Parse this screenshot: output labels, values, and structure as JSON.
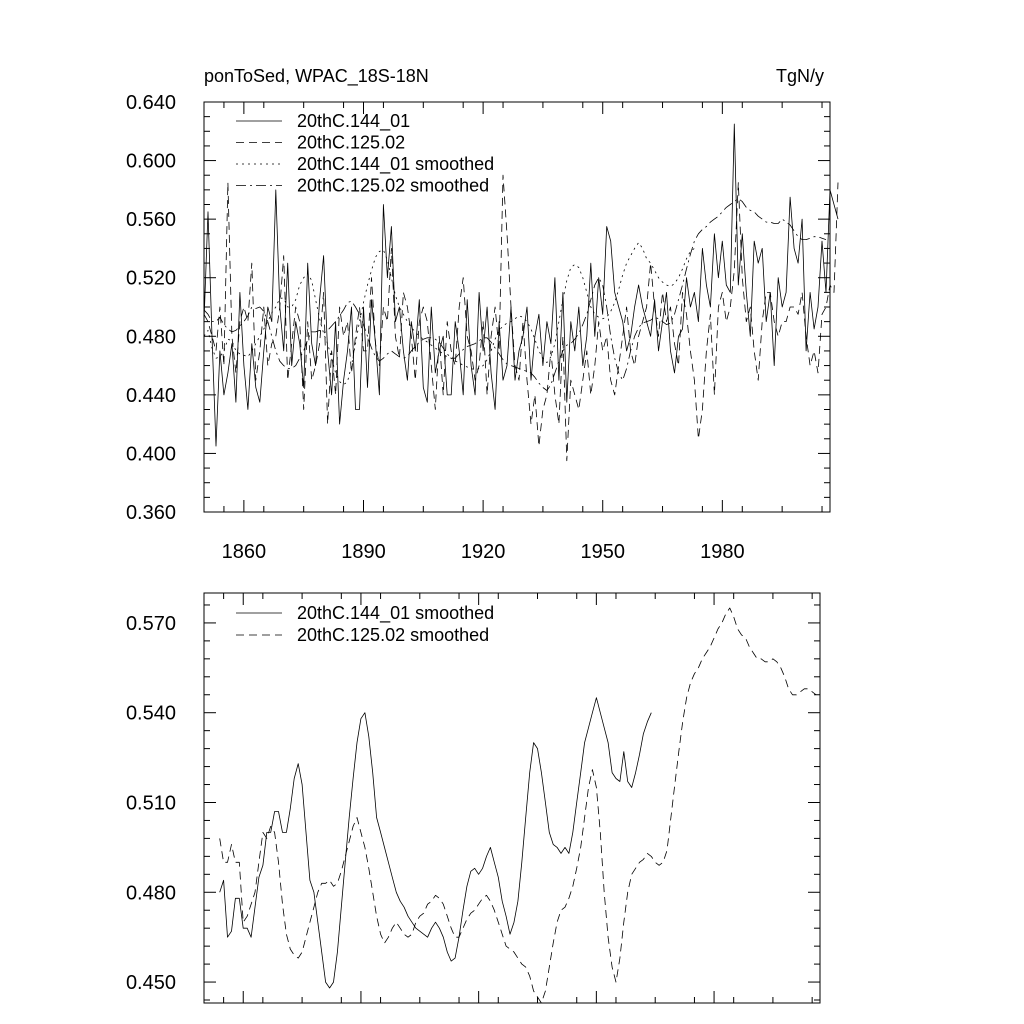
{
  "chart_data": [
    {
      "type": "line",
      "title": "ponToSed, WPAC_18S-18N",
      "units": "TgN/y",
      "xlabel": "",
      "ylabel": "",
      "xlim": [
        1850,
        2007
      ],
      "ylim": [
        0.36,
        0.64
      ],
      "xticks": [
        1860,
        1890,
        1920,
        1950,
        1980
      ],
      "xtick_labels": [
        "1860",
        "1890",
        "1920",
        "1950",
        "1980"
      ],
      "yticks": [
        0.36,
        0.4,
        0.44,
        0.48,
        0.52,
        0.56,
        0.6,
        0.64
      ],
      "ytick_labels": [
        "0.360",
        "0.400",
        "0.440",
        "0.480",
        "0.520",
        "0.560",
        "0.600",
        "0.640"
      ],
      "legend": "top-left",
      "grid": false,
      "series": [
        {
          "name": "20thC.144_01",
          "style": "solid",
          "x_start": 1850,
          "values": [
            0.49,
            0.565,
            0.48,
            0.405,
            0.47,
            0.44,
            0.455,
            0.475,
            0.435,
            0.51,
            0.46,
            0.43,
            0.475,
            0.445,
            0.435,
            0.47,
            0.5,
            0.49,
            0.58,
            0.5,
            0.47,
            0.53,
            0.46,
            0.49,
            0.475,
            0.445,
            0.53,
            0.475,
            0.46,
            0.505,
            0.535,
            0.47,
            0.44,
            0.49,
            0.42,
            0.45,
            0.47,
            0.5,
            0.43,
            0.43,
            0.5,
            0.445,
            0.505,
            0.475,
            0.44,
            0.57,
            0.52,
            0.555,
            0.49,
            0.5,
            0.47,
            0.45,
            0.49,
            0.47,
            0.505,
            0.445,
            0.435,
            0.5,
            0.455,
            0.47,
            0.48,
            0.44,
            0.44,
            0.49,
            0.47,
            0.44,
            0.505,
            0.46,
            0.44,
            0.51,
            0.47,
            0.5,
            0.455,
            0.43,
            0.49,
            0.45,
            0.46,
            0.5,
            0.45,
            0.47,
            0.48,
            0.5,
            0.45,
            0.48,
            0.495,
            0.46,
            0.49,
            0.475,
            0.52,
            0.45,
            0.51,
            0.435,
            0.49,
            0.47,
            0.5,
            0.46,
            0.48,
            0.53,
            0.48,
            0.52,
            0.495,
            0.555,
            0.545,
            0.51,
            0.5,
            0.49,
            0.47,
            0.48,
            0.5,
            0.515,
            0.5,
            0.49,
            0.48,
            0.505,
            0.47,
            0.49,
            0.51,
            0.47,
            0.455,
            0.48,
            0.485,
            0.52,
            0.5,
            0.51,
            0.49,
            0.54,
            0.515,
            0.5,
            0.55,
            0.52,
            0.545,
            0.515,
            0.51,
            0.625,
            0.515,
            0.55,
            0.51,
            0.48,
            0.545,
            0.53,
            0.54,
            0.49,
            0.51,
            0.46,
            0.52,
            0.5,
            0.51,
            0.575,
            0.54,
            0.53,
            0.56,
            0.47,
            0.51,
            0.485,
            0.5,
            0.545,
            0.51,
            0.58,
            0.57,
            0.56
          ]
        },
        {
          "name": "20thC.125.02",
          "style": "dashed",
          "x_start": 1850,
          "values": [
            0.495,
            0.49,
            0.48,
            0.47,
            0.5,
            0.46,
            0.585,
            0.48,
            0.455,
            0.49,
            0.5,
            0.49,
            0.53,
            0.45,
            0.47,
            0.5,
            0.46,
            0.475,
            0.48,
            0.5,
            0.535,
            0.45,
            0.475,
            0.5,
            0.49,
            0.43,
            0.49,
            0.45,
            0.46,
            0.475,
            0.51,
            0.42,
            0.47,
            0.44,
            0.5,
            0.48,
            0.49,
            0.455,
            0.48,
            0.5,
            0.47,
            0.47,
            0.52,
            0.475,
            0.46,
            0.5,
            0.49,
            0.54,
            0.48,
            0.465,
            0.51,
            0.5,
            0.48,
            0.45,
            0.49,
            0.5,
            0.49,
            0.46,
            0.43,
            0.48,
            0.44,
            0.49,
            0.47,
            0.46,
            0.5,
            0.52,
            0.48,
            0.47,
            0.45,
            0.46,
            0.49,
            0.44,
            0.48,
            0.5,
            0.47,
            0.59,
            0.55,
            0.5,
            0.46,
            0.45,
            0.49,
            0.45,
            0.42,
            0.44,
            0.405,
            0.43,
            0.44,
            0.47,
            0.44,
            0.42,
            0.48,
            0.395,
            0.45,
            0.44,
            0.43,
            0.45,
            0.47,
            0.44,
            0.46,
            0.49,
            0.47,
            0.48,
            0.45,
            0.44,
            0.46,
            0.48,
            0.5,
            0.47,
            0.46,
            0.48,
            0.49,
            0.5,
            0.53,
            0.5,
            0.48,
            0.51,
            0.49,
            0.5,
            0.475,
            0.46,
            0.51,
            0.495,
            0.47,
            0.45,
            0.41,
            0.43,
            0.47,
            0.495,
            0.44,
            0.5,
            0.51,
            0.49,
            0.5,
            0.525,
            0.585,
            0.52,
            0.49,
            0.5,
            0.47,
            0.45,
            0.49,
            0.51,
            0.51,
            0.49,
            0.48,
            0.49,
            0.49,
            0.5,
            0.5,
            0.495,
            0.51,
            0.48,
            0.46,
            0.47,
            0.455,
            0.495,
            0.5,
            0.515,
            0.51,
            0.585
          ]
        },
        {
          "name": "20thC.144_01 smoothed",
          "style": "dotted",
          "x_start": 1850,
          "values": [
            0.48,
            0.484,
            0.472,
            0.465,
            0.466,
            0.47,
            0.478,
            0.477,
            0.47,
            0.468,
            0.467,
            0.466,
            0.47,
            0.475,
            0.48,
            0.485,
            0.49,
            0.496,
            0.5,
            0.506,
            0.506,
            0.5,
            0.5,
            0.505,
            0.515,
            0.52,
            0.523,
            0.518,
            0.505,
            0.492,
            0.482,
            0.475,
            0.465,
            0.455,
            0.449,
            0.447,
            0.449,
            0.46,
            0.475,
            0.49,
            0.503,
            0.515,
            0.525,
            0.534,
            0.538,
            0.539,
            0.532,
            0.52,
            0.508,
            0.5,
            0.495,
            0.49,
            0.486,
            0.483,
            0.48,
            0.478,
            0.476,
            0.474,
            0.472,
            0.47,
            0.468,
            0.466,
            0.465,
            0.463,
            0.462,
            0.46,
            0.459,
            0.458,
            0.457,
            0.458,
            0.46,
            0.464,
            0.47,
            0.478,
            0.484,
            0.487,
            0.489,
            0.49,
            0.492,
            0.494,
            0.493,
            0.49,
            0.485,
            0.478,
            0.47,
            0.465,
            0.462,
            0.466,
            0.475,
            0.49,
            0.505,
            0.518,
            0.527,
            0.529,
            0.527,
            0.52,
            0.51,
            0.5,
            0.495,
            0.493,
            0.492,
            0.493,
            0.497,
            0.503,
            0.512,
            0.522,
            0.53,
            0.535,
            0.54,
            0.544,
            0.54,
            0.533,
            0.53,
            0.525,
            0.52,
            0.517,
            0.515,
            0.514,
            0.516,
            0.52,
            0.526,
            0.533,
            0.538,
            0.54
          ]
        },
        {
          "name": "20thC.125.02 smoothed",
          "style": "dashdot",
          "x_start": 1850,
          "values": [
            0.498,
            0.495,
            0.49,
            0.49,
            0.493,
            0.488,
            0.485,
            0.483,
            0.484,
            0.487,
            0.49,
            0.494,
            0.5,
            0.499,
            0.5,
            0.497,
            0.49,
            0.48,
            0.47,
            0.463,
            0.46,
            0.458,
            0.458,
            0.46,
            0.465,
            0.47,
            0.478,
            0.483,
            0.483,
            0.484,
            0.482,
            0.484,
            0.487,
            0.49,
            0.494,
            0.498,
            0.503,
            0.504,
            0.5,
            0.495,
            0.488,
            0.48,
            0.472,
            0.466,
            0.463,
            0.465,
            0.468,
            0.47,
            0.468,
            0.466,
            0.465,
            0.466,
            0.47,
            0.473,
            0.476,
            0.478,
            0.479,
            0.479,
            0.478,
            0.476,
            0.472,
            0.468,
            0.465,
            0.465,
            0.468,
            0.471,
            0.473,
            0.474,
            0.475,
            0.477,
            0.479,
            0.479,
            0.476,
            0.472,
            0.468,
            0.464,
            0.461,
            0.46,
            0.459,
            0.458,
            0.457,
            0.456,
            0.455,
            0.452,
            0.448,
            0.445,
            0.443,
            0.447,
            0.455,
            0.463,
            0.47,
            0.474,
            0.475,
            0.478,
            0.482,
            0.488,
            0.495,
            0.505,
            0.515,
            0.52,
            0.515,
            0.5,
            0.48,
            0.465,
            0.455,
            0.45,
            0.458,
            0.47,
            0.48,
            0.486,
            0.489,
            0.49,
            0.491,
            0.493,
            0.492,
            0.49,
            0.488,
            0.489,
            0.495,
            0.505,
            0.515,
            0.526,
            0.536,
            0.545,
            0.55,
            0.553,
            0.555,
            0.558,
            0.56,
            0.562,
            0.565,
            0.568,
            0.57,
            0.572,
            0.574,
            0.572,
            0.568,
            0.566,
            0.565,
            0.562,
            0.56,
            0.558,
            0.558,
            0.557,
            0.557,
            0.56,
            0.558,
            0.556,
            0.552,
            0.548,
            0.546,
            0.546,
            0.547,
            0.548,
            0.548,
            0.547,
            0.546
          ]
        }
      ]
    },
    {
      "type": "line",
      "title": "",
      "xlabel": "",
      "ylabel": "",
      "xlim": [
        1850,
        2007
      ],
      "ylim": [
        0.443,
        0.58
      ],
      "xticks": [
        1860,
        1890,
        1920,
        1950,
        1980
      ],
      "yticks": [
        0.45,
        0.48,
        0.51,
        0.54,
        0.57
      ],
      "ytick_labels": [
        "0.450",
        "0.480",
        "0.510",
        "0.540",
        "0.570"
      ],
      "legend": "top-left",
      "grid": false,
      "series": [
        {
          "name": "20thC.144_01 smoothed",
          "style": "solid",
          "x_start": 1854,
          "values": [
            0.48,
            0.484,
            0.465,
            0.467,
            0.478,
            0.478,
            0.468,
            0.468,
            0.465,
            0.475,
            0.485,
            0.489,
            0.5,
            0.5,
            0.507,
            0.507,
            0.5,
            0.5,
            0.508,
            0.518,
            0.523,
            0.516,
            0.5,
            0.484,
            0.48,
            0.47,
            0.46,
            0.45,
            0.448,
            0.45,
            0.46,
            0.475,
            0.49,
            0.505,
            0.518,
            0.53,
            0.538,
            0.54,
            0.532,
            0.52,
            0.505,
            0.5,
            0.495,
            0.49,
            0.485,
            0.48,
            0.477,
            0.475,
            0.472,
            0.47,
            0.468,
            0.467,
            0.466,
            0.465,
            0.468,
            0.47,
            0.468,
            0.465,
            0.46,
            0.457,
            0.458,
            0.465,
            0.474,
            0.482,
            0.487,
            0.488,
            0.486,
            0.488,
            0.492,
            0.495,
            0.49,
            0.485,
            0.477,
            0.472,
            0.466,
            0.47,
            0.477,
            0.49,
            0.505,
            0.52,
            0.53,
            0.528,
            0.52,
            0.51,
            0.5,
            0.496,
            0.495,
            0.493,
            0.495,
            0.493,
            0.5,
            0.51,
            0.52,
            0.53,
            0.535,
            0.54,
            0.545,
            0.54,
            0.535,
            0.53,
            0.52,
            0.518,
            0.517,
            0.527,
            0.517,
            0.515,
            0.52,
            0.526,
            0.533,
            0.537,
            0.54
          ]
        },
        {
          "name": "20thC.125.02 smoothed",
          "style": "dashed",
          "x_start": 1854,
          "values": [
            0.498,
            0.49,
            0.49,
            0.496,
            0.49,
            0.49,
            0.47,
            0.472,
            0.476,
            0.48,
            0.49,
            0.5,
            0.498,
            0.502,
            0.5,
            0.49,
            0.476,
            0.466,
            0.461,
            0.459,
            0.458,
            0.46,
            0.465,
            0.47,
            0.475,
            0.48,
            0.483,
            0.483,
            0.484,
            0.482,
            0.483,
            0.487,
            0.492,
            0.497,
            0.502,
            0.505,
            0.5,
            0.495,
            0.488,
            0.48,
            0.472,
            0.466,
            0.463,
            0.465,
            0.468,
            0.47,
            0.468,
            0.466,
            0.465,
            0.466,
            0.47,
            0.472,
            0.473,
            0.476,
            0.477,
            0.479,
            0.478,
            0.476,
            0.472,
            0.468,
            0.465,
            0.465,
            0.468,
            0.471,
            0.473,
            0.474,
            0.476,
            0.478,
            0.479,
            0.477,
            0.474,
            0.47,
            0.466,
            0.462,
            0.461,
            0.46,
            0.458,
            0.456,
            0.455,
            0.452,
            0.447,
            0.445,
            0.443,
            0.447,
            0.455,
            0.463,
            0.47,
            0.474,
            0.475,
            0.478,
            0.482,
            0.488,
            0.495,
            0.505,
            0.515,
            0.521,
            0.515,
            0.5,
            0.48,
            0.465,
            0.455,
            0.45,
            0.458,
            0.47,
            0.48,
            0.486,
            0.488,
            0.49,
            0.491,
            0.493,
            0.492,
            0.49,
            0.489,
            0.49,
            0.494,
            0.505,
            0.516,
            0.527,
            0.537,
            0.545,
            0.55,
            0.553,
            0.555,
            0.558,
            0.56,
            0.562,
            0.565,
            0.568,
            0.57,
            0.573,
            0.575,
            0.572,
            0.568,
            0.566,
            0.565,
            0.562,
            0.56,
            0.558,
            0.558,
            0.557,
            0.557,
            0.558,
            0.557,
            0.555,
            0.552,
            0.548,
            0.546,
            0.546,
            0.547,
            0.548,
            0.548,
            0.547,
            0.546
          ]
        }
      ]
    }
  ]
}
